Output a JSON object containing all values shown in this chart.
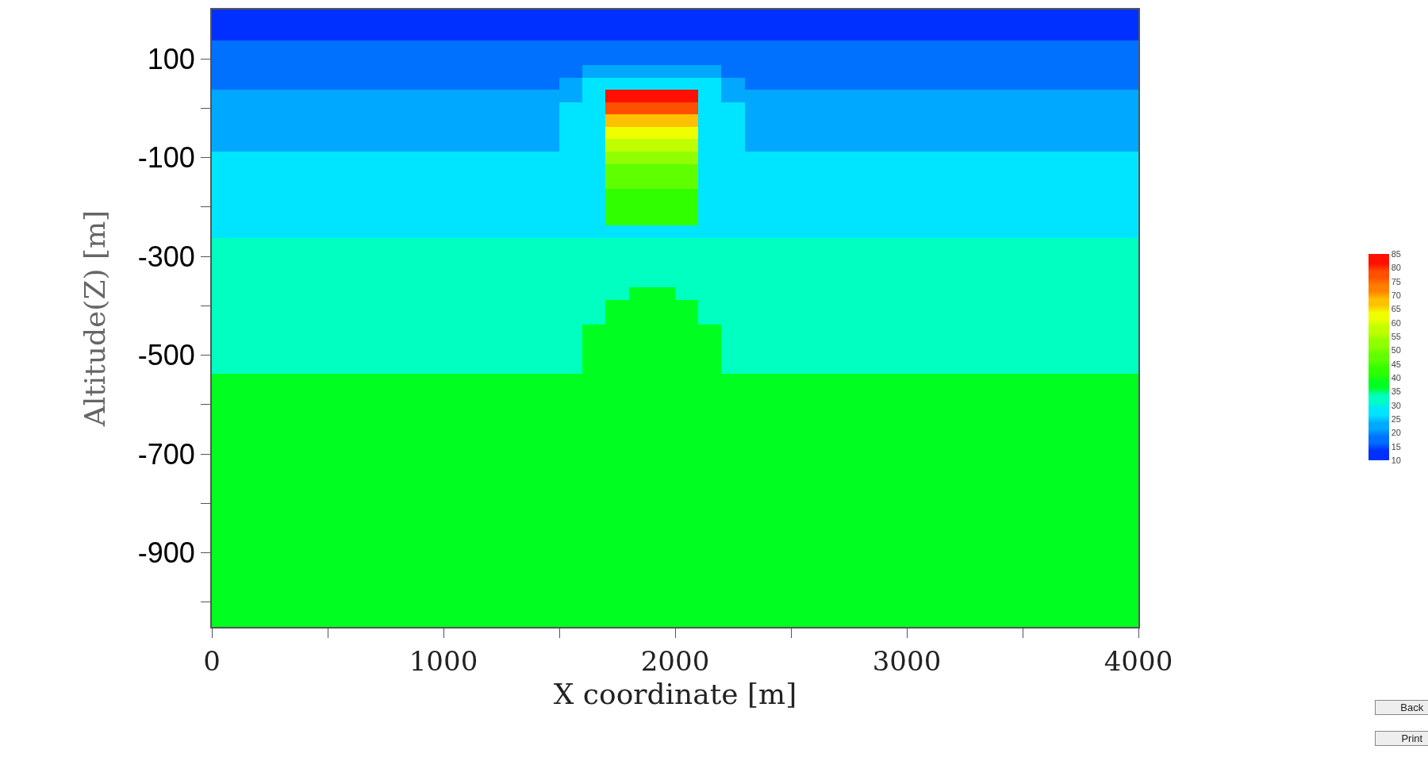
{
  "chart_data": {
    "type": "heatmap",
    "xlabel": "X coordinate [m]",
    "ylabel": "Altitude(Z) [m]",
    "x": [
      50,
      150,
      250,
      350,
      450,
      550,
      650,
      750,
      850,
      950,
      1050,
      1150,
      1250,
      1350,
      1450,
      1550,
      1650,
      1750,
      1850,
      1950,
      2050,
      2150,
      2250,
      2350,
      2450,
      2550,
      2650,
      2750,
      2850,
      2950,
      3050,
      3150,
      3250,
      3350,
      3450,
      3550,
      3650,
      3750,
      3850,
      3950
    ],
    "y": [
      200,
      175,
      150,
      125,
      100,
      75,
      50,
      25,
      0,
      -25,
      -50,
      -75,
      -100,
      -125,
      -150,
      -175,
      -200,
      -225,
      -250,
      -275,
      -300,
      -325,
      -350,
      -375,
      -400,
      -425,
      -450,
      -475,
      -500,
      -525,
      -550,
      -575,
      -600,
      -625,
      -650,
      -675,
      -700,
      -725,
      -750,
      -775,
      -800,
      -825,
      -850,
      -875,
      -900,
      -925,
      -950,
      -975,
      -1000,
      -1025,
      -1050
    ],
    "cells": [
      [
        12.5,
        12.5,
        12.5,
        12.5,
        12.5,
        12.5,
        12.5,
        12.5,
        12.5,
        12.5,
        12.5,
        12.5,
        12.5,
        12.5,
        12.5,
        12.5,
        12.5,
        12.5,
        12.5,
        12.5,
        12.5,
        12.5,
        12.5,
        12.5,
        12.5,
        12.5,
        12.5,
        12.5,
        12.5,
        12.5,
        12.5,
        12.5,
        12.5,
        12.5,
        12.5,
        12.5,
        12.5,
        12.5,
        12.5,
        12.5
      ],
      [
        12.5,
        12.5,
        12.5,
        12.5,
        12.5,
        12.5,
        12.5,
        12.5,
        12.5,
        12.5,
        12.5,
        12.5,
        12.5,
        12.5,
        12.5,
        12.5,
        12.5,
        12.5,
        12.5,
        12.5,
        12.5,
        12.5,
        12.5,
        12.5,
        12.5,
        12.5,
        12.5,
        12.5,
        12.5,
        12.5,
        12.5,
        12.5,
        12.5,
        12.5,
        12.5,
        12.5,
        12.5,
        12.5,
        12.5,
        12.5
      ],
      [
        12.5,
        12.5,
        12.5,
        12.5,
        12.5,
        12.5,
        12.5,
        12.5,
        12.5,
        12.5,
        12.5,
        12.5,
        12.5,
        12.5,
        12.5,
        12.5,
        12.5,
        12.5,
        12.5,
        12.5,
        12.5,
        12.5,
        12.5,
        12.5,
        12.5,
        12.5,
        12.5,
        12.5,
        12.5,
        12.5,
        12.5,
        12.5,
        12.5,
        12.5,
        12.5,
        12.5,
        12.5,
        12.5,
        12.5,
        12.5
      ],
      [
        17.5,
        17.5,
        17.5,
        17.5,
        17.5,
        17.5,
        17.5,
        17.5,
        17.5,
        17.5,
        17.5,
        17.5,
        17.5,
        17.5,
        17.5,
        17.5,
        17.5,
        17.5,
        17.5,
        17.5,
        17.5,
        17.5,
        17.5,
        17.5,
        17.5,
        17.5,
        17.5,
        17.5,
        17.5,
        17.5,
        17.5,
        17.5,
        17.5,
        17.5,
        17.5,
        17.5,
        17.5,
        17.5,
        17.5,
        17.5
      ],
      [
        17.5,
        17.5,
        17.5,
        17.5,
        17.5,
        17.5,
        17.5,
        17.5,
        17.5,
        17.5,
        17.5,
        17.5,
        17.5,
        17.5,
        17.5,
        17.5,
        17.5,
        17.5,
        17.5,
        17.5,
        17.5,
        17.5,
        17.5,
        17.5,
        17.5,
        17.5,
        17.5,
        17.5,
        17.5,
        17.5,
        17.5,
        17.5,
        17.5,
        17.5,
        17.5,
        17.5,
        17.5,
        17.5,
        17.5,
        17.5
      ],
      [
        17.5,
        17.5,
        17.5,
        17.5,
        17.5,
        17.5,
        17.5,
        17.5,
        17.5,
        17.5,
        17.5,
        17.5,
        17.5,
        17.5,
        17.5,
        17.5,
        22.5,
        22.5,
        22.5,
        22.5,
        22.5,
        22.5,
        17.5,
        17.5,
        17.5,
        17.5,
        17.5,
        17.5,
        17.5,
        17.5,
        17.5,
        17.5,
        17.5,
        17.5,
        17.5,
        17.5,
        17.5,
        17.5,
        17.5,
        17.5
      ],
      [
        17.5,
        17.5,
        17.5,
        17.5,
        17.5,
        17.5,
        17.5,
        17.5,
        17.5,
        17.5,
        17.5,
        17.5,
        17.5,
        17.5,
        17.5,
        22.5,
        27.5,
        27.5,
        27.5,
        27.5,
        27.5,
        27.5,
        22.5,
        17.5,
        17.5,
        17.5,
        17.5,
        17.5,
        17.5,
        17.5,
        17.5,
        17.5,
        17.5,
        17.5,
        17.5,
        17.5,
        17.5,
        17.5,
        17.5,
        17.5
      ],
      [
        22.5,
        22.5,
        22.5,
        22.5,
        22.5,
        22.5,
        22.5,
        22.5,
        22.5,
        22.5,
        22.5,
        22.5,
        22.5,
        22.5,
        22.5,
        22.5,
        27.5,
        82.5,
        82.5,
        82.5,
        82.5,
        27.5,
        22.5,
        22.5,
        22.5,
        22.5,
        22.5,
        22.5,
        22.5,
        22.5,
        22.5,
        22.5,
        22.5,
        22.5,
        22.5,
        22.5,
        22.5,
        22.5,
        22.5,
        22.5
      ],
      [
        22.5,
        22.5,
        22.5,
        22.5,
        22.5,
        22.5,
        22.5,
        22.5,
        22.5,
        22.5,
        22.5,
        22.5,
        22.5,
        22.5,
        22.5,
        27.5,
        27.5,
        77.5,
        77.5,
        77.5,
        77.5,
        27.5,
        27.5,
        22.5,
        22.5,
        22.5,
        22.5,
        22.5,
        22.5,
        22.5,
        22.5,
        22.5,
        22.5,
        22.5,
        22.5,
        22.5,
        22.5,
        22.5,
        22.5,
        22.5
      ],
      [
        22.5,
        22.5,
        22.5,
        22.5,
        22.5,
        22.5,
        22.5,
        22.5,
        22.5,
        22.5,
        22.5,
        22.5,
        22.5,
        22.5,
        22.5,
        27.5,
        27.5,
        67.5,
        67.5,
        67.5,
        67.5,
        27.5,
        27.5,
        22.5,
        22.5,
        22.5,
        22.5,
        22.5,
        22.5,
        22.5,
        22.5,
        22.5,
        22.5,
        22.5,
        22.5,
        22.5,
        22.5,
        22.5,
        22.5,
        22.5
      ],
      [
        22.5,
        22.5,
        22.5,
        22.5,
        22.5,
        22.5,
        22.5,
        22.5,
        22.5,
        22.5,
        22.5,
        22.5,
        22.5,
        22.5,
        22.5,
        27.5,
        27.5,
        62.5,
        62.5,
        62.5,
        62.5,
        27.5,
        27.5,
        22.5,
        22.5,
        22.5,
        22.5,
        22.5,
        22.5,
        22.5,
        22.5,
        22.5,
        22.5,
        22.5,
        22.5,
        22.5,
        22.5,
        22.5,
        22.5,
        22.5
      ],
      [
        22.5,
        22.5,
        22.5,
        22.5,
        22.5,
        22.5,
        22.5,
        22.5,
        22.5,
        22.5,
        22.5,
        22.5,
        22.5,
        22.5,
        22.5,
        27.5,
        27.5,
        57.5,
        57.5,
        57.5,
        57.5,
        27.5,
        27.5,
        22.5,
        22.5,
        22.5,
        22.5,
        22.5,
        22.5,
        22.5,
        22.5,
        22.5,
        22.5,
        22.5,
        22.5,
        22.5,
        22.5,
        22.5,
        22.5,
        22.5
      ],
      [
        27.5,
        27.5,
        27.5,
        27.5,
        27.5,
        27.5,
        27.5,
        27.5,
        27.5,
        27.5,
        27.5,
        27.5,
        27.5,
        27.5,
        27.5,
        27.5,
        27.5,
        52.5,
        52.5,
        52.5,
        52.5,
        27.5,
        27.5,
        27.5,
        27.5,
        27.5,
        27.5,
        27.5,
        27.5,
        27.5,
        27.5,
        27.5,
        27.5,
        27.5,
        27.5,
        27.5,
        27.5,
        27.5,
        27.5,
        27.5
      ],
      [
        27.5,
        27.5,
        27.5,
        27.5,
        27.5,
        27.5,
        27.5,
        27.5,
        27.5,
        27.5,
        27.5,
        27.5,
        27.5,
        27.5,
        27.5,
        27.5,
        27.5,
        47.5,
        47.5,
        47.5,
        47.5,
        27.5,
        27.5,
        27.5,
        27.5,
        27.5,
        27.5,
        27.5,
        27.5,
        27.5,
        27.5,
        27.5,
        27.5,
        27.5,
        27.5,
        27.5,
        27.5,
        27.5,
        27.5,
        27.5
      ],
      [
        27.5,
        27.5,
        27.5,
        27.5,
        27.5,
        27.5,
        27.5,
        27.5,
        27.5,
        27.5,
        27.5,
        27.5,
        27.5,
        27.5,
        27.5,
        27.5,
        27.5,
        47.5,
        47.5,
        47.5,
        47.5,
        27.5,
        27.5,
        27.5,
        27.5,
        27.5,
        27.5,
        27.5,
        27.5,
        27.5,
        27.5,
        27.5,
        27.5,
        27.5,
        27.5,
        27.5,
        27.5,
        27.5,
        27.5,
        27.5
      ],
      [
        27.5,
        27.5,
        27.5,
        27.5,
        27.5,
        27.5,
        27.5,
        27.5,
        27.5,
        27.5,
        27.5,
        27.5,
        27.5,
        27.5,
        27.5,
        27.5,
        27.5,
        42.5,
        42.5,
        42.5,
        42.5,
        27.5,
        27.5,
        27.5,
        27.5,
        27.5,
        27.5,
        27.5,
        27.5,
        27.5,
        27.5,
        27.5,
        27.5,
        27.5,
        27.5,
        27.5,
        27.5,
        27.5,
        27.5,
        27.5
      ],
      [
        27.5,
        27.5,
        27.5,
        27.5,
        27.5,
        27.5,
        27.5,
        27.5,
        27.5,
        27.5,
        27.5,
        27.5,
        27.5,
        27.5,
        27.5,
        27.5,
        27.5,
        42.5,
        42.5,
        42.5,
        42.5,
        27.5,
        27.5,
        27.5,
        27.5,
        27.5,
        27.5,
        27.5,
        27.5,
        27.5,
        27.5,
        27.5,
        27.5,
        27.5,
        27.5,
        27.5,
        27.5,
        27.5,
        27.5,
        27.5
      ],
      [
        27.5,
        27.5,
        27.5,
        27.5,
        27.5,
        27.5,
        27.5,
        27.5,
        27.5,
        27.5,
        27.5,
        27.5,
        27.5,
        27.5,
        27.5,
        27.5,
        27.5,
        42.5,
        42.5,
        42.5,
        42.5,
        27.5,
        27.5,
        27.5,
        27.5,
        27.5,
        27.5,
        27.5,
        27.5,
        27.5,
        27.5,
        27.5,
        27.5,
        27.5,
        27.5,
        27.5,
        27.5,
        27.5,
        27.5,
        27.5
      ],
      [
        27.5,
        27.5,
        27.5,
        27.5,
        27.5,
        27.5,
        27.5,
        27.5,
        27.5,
        27.5,
        27.5,
        27.5,
        27.5,
        27.5,
        27.5,
        27.5,
        27.5,
        27.5,
        27.5,
        27.5,
        27.5,
        27.5,
        27.5,
        27.5,
        27.5,
        27.5,
        27.5,
        27.5,
        27.5,
        27.5,
        27.5,
        27.5,
        27.5,
        27.5,
        27.5,
        27.5,
        27.5,
        27.5,
        27.5,
        27.5
      ],
      [
        32.5,
        32.5,
        32.5,
        32.5,
        32.5,
        32.5,
        32.5,
        32.5,
        32.5,
        32.5,
        32.5,
        32.5,
        32.5,
        32.5,
        32.5,
        32.5,
        32.5,
        32.5,
        32.5,
        32.5,
        32.5,
        32.5,
        32.5,
        32.5,
        32.5,
        32.5,
        32.5,
        32.5,
        32.5,
        32.5,
        32.5,
        32.5,
        32.5,
        32.5,
        32.5,
        32.5,
        32.5,
        32.5,
        32.5,
        32.5
      ],
      [
        32.5,
        32.5,
        32.5,
        32.5,
        32.5,
        32.5,
        32.5,
        32.5,
        32.5,
        32.5,
        32.5,
        32.5,
        32.5,
        32.5,
        32.5,
        32.5,
        32.5,
        32.5,
        32.5,
        32.5,
        32.5,
        32.5,
        32.5,
        32.5,
        32.5,
        32.5,
        32.5,
        32.5,
        32.5,
        32.5,
        32.5,
        32.5,
        32.5,
        32.5,
        32.5,
        32.5,
        32.5,
        32.5,
        32.5,
        32.5
      ],
      [
        32.5,
        32.5,
        32.5,
        32.5,
        32.5,
        32.5,
        32.5,
        32.5,
        32.5,
        32.5,
        32.5,
        32.5,
        32.5,
        32.5,
        32.5,
        32.5,
        32.5,
        32.5,
        32.5,
        32.5,
        32.5,
        32.5,
        32.5,
        32.5,
        32.5,
        32.5,
        32.5,
        32.5,
        32.5,
        32.5,
        32.5,
        32.5,
        32.5,
        32.5,
        32.5,
        32.5,
        32.5,
        32.5,
        32.5,
        32.5
      ],
      [
        32.5,
        32.5,
        32.5,
        32.5,
        32.5,
        32.5,
        32.5,
        32.5,
        32.5,
        32.5,
        32.5,
        32.5,
        32.5,
        32.5,
        32.5,
        32.5,
        32.5,
        32.5,
        32.5,
        32.5,
        32.5,
        32.5,
        32.5,
        32.5,
        32.5,
        32.5,
        32.5,
        32.5,
        32.5,
        32.5,
        32.5,
        32.5,
        32.5,
        32.5,
        32.5,
        32.5,
        32.5,
        32.5,
        32.5,
        32.5
      ],
      [
        32.5,
        32.5,
        32.5,
        32.5,
        32.5,
        32.5,
        32.5,
        32.5,
        32.5,
        32.5,
        32.5,
        32.5,
        32.5,
        32.5,
        32.5,
        32.5,
        32.5,
        32.5,
        37.5,
        37.5,
        32.5,
        32.5,
        32.5,
        32.5,
        32.5,
        32.5,
        32.5,
        32.5,
        32.5,
        32.5,
        32.5,
        32.5,
        32.5,
        32.5,
        32.5,
        32.5,
        32.5,
        32.5,
        32.5,
        32.5
      ],
      [
        32.5,
        32.5,
        32.5,
        32.5,
        32.5,
        32.5,
        32.5,
        32.5,
        32.5,
        32.5,
        32.5,
        32.5,
        32.5,
        32.5,
        32.5,
        32.5,
        32.5,
        37.5,
        37.5,
        37.5,
        37.5,
        32.5,
        32.5,
        32.5,
        32.5,
        32.5,
        32.5,
        32.5,
        32.5,
        32.5,
        32.5,
        32.5,
        32.5,
        32.5,
        32.5,
        32.5,
        32.5,
        32.5,
        32.5,
        32.5
      ],
      [
        32.5,
        32.5,
        32.5,
        32.5,
        32.5,
        32.5,
        32.5,
        32.5,
        32.5,
        32.5,
        32.5,
        32.5,
        32.5,
        32.5,
        32.5,
        32.5,
        32.5,
        37.5,
        37.5,
        37.5,
        37.5,
        32.5,
        32.5,
        32.5,
        32.5,
        32.5,
        32.5,
        32.5,
        32.5,
        32.5,
        32.5,
        32.5,
        32.5,
        32.5,
        32.5,
        32.5,
        32.5,
        32.5,
        32.5,
        32.5
      ],
      [
        32.5,
        32.5,
        32.5,
        32.5,
        32.5,
        32.5,
        32.5,
        32.5,
        32.5,
        32.5,
        32.5,
        32.5,
        32.5,
        32.5,
        32.5,
        32.5,
        37.5,
        37.5,
        37.5,
        37.5,
        37.5,
        37.5,
        32.5,
        32.5,
        32.5,
        32.5,
        32.5,
        32.5,
        32.5,
        32.5,
        32.5,
        32.5,
        32.5,
        32.5,
        32.5,
        32.5,
        32.5,
        32.5,
        32.5,
        32.5
      ],
      [
        32.5,
        32.5,
        32.5,
        32.5,
        32.5,
        32.5,
        32.5,
        32.5,
        32.5,
        32.5,
        32.5,
        32.5,
        32.5,
        32.5,
        32.5,
        32.5,
        37.5,
        37.5,
        37.5,
        37.5,
        37.5,
        37.5,
        32.5,
        32.5,
        32.5,
        32.5,
        32.5,
        32.5,
        32.5,
        32.5,
        32.5,
        32.5,
        32.5,
        32.5,
        32.5,
        32.5,
        32.5,
        32.5,
        32.5,
        32.5
      ],
      [
        32.5,
        32.5,
        32.5,
        32.5,
        32.5,
        32.5,
        32.5,
        32.5,
        32.5,
        32.5,
        32.5,
        32.5,
        32.5,
        32.5,
        32.5,
        32.5,
        37.5,
        37.5,
        37.5,
        37.5,
        37.5,
        37.5,
        32.5,
        32.5,
        32.5,
        32.5,
        32.5,
        32.5,
        32.5,
        32.5,
        32.5,
        32.5,
        32.5,
        32.5,
        32.5,
        32.5,
        32.5,
        32.5,
        32.5,
        32.5
      ],
      [
        32.5,
        32.5,
        32.5,
        32.5,
        32.5,
        32.5,
        32.5,
        32.5,
        32.5,
        32.5,
        32.5,
        32.5,
        32.5,
        32.5,
        32.5,
        32.5,
        37.5,
        37.5,
        37.5,
        37.5,
        37.5,
        37.5,
        32.5,
        32.5,
        32.5,
        32.5,
        32.5,
        32.5,
        32.5,
        32.5,
        32.5,
        32.5,
        32.5,
        32.5,
        32.5,
        32.5,
        32.5,
        32.5,
        32.5,
        32.5
      ],
      [
        37.5,
        37.5,
        37.5,
        37.5,
        37.5,
        37.5,
        37.5,
        37.5,
        37.5,
        37.5,
        37.5,
        37.5,
        37.5,
        37.5,
        37.5,
        37.5,
        37.5,
        37.5,
        37.5,
        37.5,
        37.5,
        37.5,
        37.5,
        37.5,
        37.5,
        37.5,
        37.5,
        37.5,
        37.5,
        37.5,
        37.5,
        37.5,
        37.5,
        37.5,
        37.5,
        37.5,
        37.5,
        37.5,
        37.5,
        37.5
      ],
      [
        37.5,
        37.5,
        37.5,
        37.5,
        37.5,
        37.5,
        37.5,
        37.5,
        37.5,
        37.5,
        37.5,
        37.5,
        37.5,
        37.5,
        37.5,
        37.5,
        37.5,
        37.5,
        37.5,
        37.5,
        37.5,
        37.5,
        37.5,
        37.5,
        37.5,
        37.5,
        37.5,
        37.5,
        37.5,
        37.5,
        37.5,
        37.5,
        37.5,
        37.5,
        37.5,
        37.5,
        37.5,
        37.5,
        37.5,
        37.5
      ],
      [
        37.5,
        37.5,
        37.5,
        37.5,
        37.5,
        37.5,
        37.5,
        37.5,
        37.5,
        37.5,
        37.5,
        37.5,
        37.5,
        37.5,
        37.5,
        37.5,
        37.5,
        37.5,
        37.5,
        37.5,
        37.5,
        37.5,
        37.5,
        37.5,
        37.5,
        37.5,
        37.5,
        37.5,
        37.5,
        37.5,
        37.5,
        37.5,
        37.5,
        37.5,
        37.5,
        37.5,
        37.5,
        37.5,
        37.5,
        37.5
      ],
      [
        37.5,
        37.5,
        37.5,
        37.5,
        37.5,
        37.5,
        37.5,
        37.5,
        37.5,
        37.5,
        37.5,
        37.5,
        37.5,
        37.5,
        37.5,
        37.5,
        37.5,
        37.5,
        37.5,
        37.5,
        37.5,
        37.5,
        37.5,
        37.5,
        37.5,
        37.5,
        37.5,
        37.5,
        37.5,
        37.5,
        37.5,
        37.5,
        37.5,
        37.5,
        37.5,
        37.5,
        37.5,
        37.5,
        37.5,
        37.5
      ],
      [
        37.5,
        37.5,
        37.5,
        37.5,
        37.5,
        37.5,
        37.5,
        37.5,
        37.5,
        37.5,
        37.5,
        37.5,
        37.5,
        37.5,
        37.5,
        37.5,
        37.5,
        37.5,
        37.5,
        37.5,
        37.5,
        37.5,
        37.5,
        37.5,
        37.5,
        37.5,
        37.5,
        37.5,
        37.5,
        37.5,
        37.5,
        37.5,
        37.5,
        37.5,
        37.5,
        37.5,
        37.5,
        37.5,
        37.5,
        37.5
      ],
      [
        37.5,
        37.5,
        37.5,
        37.5,
        37.5,
        37.5,
        37.5,
        37.5,
        37.5,
        37.5,
        37.5,
        37.5,
        37.5,
        37.5,
        37.5,
        37.5,
        37.5,
        37.5,
        37.5,
        37.5,
        37.5,
        37.5,
        37.5,
        37.5,
        37.5,
        37.5,
        37.5,
        37.5,
        37.5,
        37.5,
        37.5,
        37.5,
        37.5,
        37.5,
        37.5,
        37.5,
        37.5,
        37.5,
        37.5,
        37.5
      ],
      [
        37.5,
        37.5,
        37.5,
        37.5,
        37.5,
        37.5,
        37.5,
        37.5,
        37.5,
        37.5,
        37.5,
        37.5,
        37.5,
        37.5,
        37.5,
        37.5,
        37.5,
        37.5,
        37.5,
        37.5,
        37.5,
        37.5,
        37.5,
        37.5,
        37.5,
        37.5,
        37.5,
        37.5,
        37.5,
        37.5,
        37.5,
        37.5,
        37.5,
        37.5,
        37.5,
        37.5,
        37.5,
        37.5,
        37.5,
        37.5
      ],
      [
        37.5,
        37.5,
        37.5,
        37.5,
        37.5,
        37.5,
        37.5,
        37.5,
        37.5,
        37.5,
        37.5,
        37.5,
        37.5,
        37.5,
        37.5,
        37.5,
        37.5,
        37.5,
        37.5,
        37.5,
        37.5,
        37.5,
        37.5,
        37.5,
        37.5,
        37.5,
        37.5,
        37.5,
        37.5,
        37.5,
        37.5,
        37.5,
        37.5,
        37.5,
        37.5,
        37.5,
        37.5,
        37.5,
        37.5,
        37.5
      ],
      [
        37.5,
        37.5,
        37.5,
        37.5,
        37.5,
        37.5,
        37.5,
        37.5,
        37.5,
        37.5,
        37.5,
        37.5,
        37.5,
        37.5,
        37.5,
        37.5,
        37.5,
        37.5,
        37.5,
        37.5,
        37.5,
        37.5,
        37.5,
        37.5,
        37.5,
        37.5,
        37.5,
        37.5,
        37.5,
        37.5,
        37.5,
        37.5,
        37.5,
        37.5,
        37.5,
        37.5,
        37.5,
        37.5,
        37.5,
        37.5
      ],
      [
        37.5,
        37.5,
        37.5,
        37.5,
        37.5,
        37.5,
        37.5,
        37.5,
        37.5,
        37.5,
        37.5,
        37.5,
        37.5,
        37.5,
        37.5,
        37.5,
        37.5,
        37.5,
        37.5,
        37.5,
        37.5,
        37.5,
        37.5,
        37.5,
        37.5,
        37.5,
        37.5,
        37.5,
        37.5,
        37.5,
        37.5,
        37.5,
        37.5,
        37.5,
        37.5,
        37.5,
        37.5,
        37.5,
        37.5,
        37.5
      ],
      [
        37.5,
        37.5,
        37.5,
        37.5,
        37.5,
        37.5,
        37.5,
        37.5,
        37.5,
        37.5,
        37.5,
        37.5,
        37.5,
        37.5,
        37.5,
        37.5,
        37.5,
        37.5,
        37.5,
        37.5,
        37.5,
        37.5,
        37.5,
        37.5,
        37.5,
        37.5,
        37.5,
        37.5,
        37.5,
        37.5,
        37.5,
        37.5,
        37.5,
        37.5,
        37.5,
        37.5,
        37.5,
        37.5,
        37.5,
        37.5
      ],
      [
        37.5,
        37.5,
        37.5,
        37.5,
        37.5,
        37.5,
        37.5,
        37.5,
        37.5,
        37.5,
        37.5,
        37.5,
        37.5,
        37.5,
        37.5,
        37.5,
        37.5,
        37.5,
        37.5,
        37.5,
        37.5,
        37.5,
        37.5,
        37.5,
        37.5,
        37.5,
        37.5,
        37.5,
        37.5,
        37.5,
        37.5,
        37.5,
        37.5,
        37.5,
        37.5,
        37.5,
        37.5,
        37.5,
        37.5,
        37.5
      ],
      [
        37.5,
        37.5,
        37.5,
        37.5,
        37.5,
        37.5,
        37.5,
        37.5,
        37.5,
        37.5,
        37.5,
        37.5,
        37.5,
        37.5,
        37.5,
        37.5,
        37.5,
        37.5,
        37.5,
        37.5,
        37.5,
        37.5,
        37.5,
        37.5,
        37.5,
        37.5,
        37.5,
        37.5,
        37.5,
        37.5,
        37.5,
        37.5,
        37.5,
        37.5,
        37.5,
        37.5,
        37.5,
        37.5,
        37.5,
        37.5
      ],
      [
        37.5,
        37.5,
        37.5,
        37.5,
        37.5,
        37.5,
        37.5,
        37.5,
        37.5,
        37.5,
        37.5,
        37.5,
        37.5,
        37.5,
        37.5,
        37.5,
        37.5,
        37.5,
        37.5,
        37.5,
        37.5,
        37.5,
        37.5,
        37.5,
        37.5,
        37.5,
        37.5,
        37.5,
        37.5,
        37.5,
        37.5,
        37.5,
        37.5,
        37.5,
        37.5,
        37.5,
        37.5,
        37.5,
        37.5,
        37.5
      ],
      [
        37.5,
        37.5,
        37.5,
        37.5,
        37.5,
        37.5,
        37.5,
        37.5,
        37.5,
        37.5,
        37.5,
        37.5,
        37.5,
        37.5,
        37.5,
        37.5,
        37.5,
        37.5,
        37.5,
        37.5,
        37.5,
        37.5,
        37.5,
        37.5,
        37.5,
        37.5,
        37.5,
        37.5,
        37.5,
        37.5,
        37.5,
        37.5,
        37.5,
        37.5,
        37.5,
        37.5,
        37.5,
        37.5,
        37.5,
        37.5
      ],
      [
        37.5,
        37.5,
        37.5,
        37.5,
        37.5,
        37.5,
        37.5,
        37.5,
        37.5,
        37.5,
        37.5,
        37.5,
        37.5,
        37.5,
        37.5,
        37.5,
        37.5,
        37.5,
        37.5,
        37.5,
        37.5,
        37.5,
        37.5,
        37.5,
        37.5,
        37.5,
        37.5,
        37.5,
        37.5,
        37.5,
        37.5,
        37.5,
        37.5,
        37.5,
        37.5,
        37.5,
        37.5,
        37.5,
        37.5,
        37.5
      ],
      [
        37.5,
        37.5,
        37.5,
        37.5,
        37.5,
        37.5,
        37.5,
        37.5,
        37.5,
        37.5,
        37.5,
        37.5,
        37.5,
        37.5,
        37.5,
        37.5,
        37.5,
        37.5,
        37.5,
        37.5,
        37.5,
        37.5,
        37.5,
        37.5,
        37.5,
        37.5,
        37.5,
        37.5,
        37.5,
        37.5,
        37.5,
        37.5,
        37.5,
        37.5,
        37.5,
        37.5,
        37.5,
        37.5,
        37.5,
        37.5
      ],
      [
        37.5,
        37.5,
        37.5,
        37.5,
        37.5,
        37.5,
        37.5,
        37.5,
        37.5,
        37.5,
        37.5,
        37.5,
        37.5,
        37.5,
        37.5,
        37.5,
        37.5,
        37.5,
        37.5,
        37.5,
        37.5,
        37.5,
        37.5,
        37.5,
        37.5,
        37.5,
        37.5,
        37.5,
        37.5,
        37.5,
        37.5,
        37.5,
        37.5,
        37.5,
        37.5,
        37.5,
        37.5,
        37.5,
        37.5,
        37.5
      ],
      [
        37.5,
        37.5,
        37.5,
        37.5,
        37.5,
        37.5,
        37.5,
        37.5,
        37.5,
        37.5,
        37.5,
        37.5,
        37.5,
        37.5,
        37.5,
        37.5,
        37.5,
        37.5,
        37.5,
        37.5,
        37.5,
        37.5,
        37.5,
        37.5,
        37.5,
        37.5,
        37.5,
        37.5,
        37.5,
        37.5,
        37.5,
        37.5,
        37.5,
        37.5,
        37.5,
        37.5,
        37.5,
        37.5,
        37.5,
        37.5
      ],
      [
        37.5,
        37.5,
        37.5,
        37.5,
        37.5,
        37.5,
        37.5,
        37.5,
        37.5,
        37.5,
        37.5,
        37.5,
        37.5,
        37.5,
        37.5,
        37.5,
        37.5,
        37.5,
        37.5,
        37.5,
        37.5,
        37.5,
        37.5,
        37.5,
        37.5,
        37.5,
        37.5,
        37.5,
        37.5,
        37.5,
        37.5,
        37.5,
        37.5,
        37.5,
        37.5,
        37.5,
        37.5,
        37.5,
        37.5,
        37.5
      ],
      [
        37.5,
        37.5,
        37.5,
        37.5,
        37.5,
        37.5,
        37.5,
        37.5,
        37.5,
        37.5,
        37.5,
        37.5,
        37.5,
        37.5,
        37.5,
        37.5,
        37.5,
        37.5,
        37.5,
        37.5,
        37.5,
        37.5,
        37.5,
        37.5,
        37.5,
        37.5,
        37.5,
        37.5,
        37.5,
        37.5,
        37.5,
        37.5,
        37.5,
        37.5,
        37.5,
        37.5,
        37.5,
        37.5,
        37.5,
        37.5
      ]
    ],
    "colors": [
      "#0030ff",
      "#0070ff",
      "#00a8ff",
      "#00e5ff",
      "#00ffc0",
      "#00ff20",
      "#30ff00",
      "#60ff00",
      "#90ff00",
      "#c0ff00",
      "#f0ff00",
      "#ffc000",
      "#ff8000",
      "#ff5000",
      "#ff1000"
    ],
    "clim": [
      10,
      85
    ],
    "cticks": [
      10,
      15,
      20,
      25,
      30,
      35,
      40,
      45,
      50,
      55,
      60,
      65,
      70,
      75,
      80,
      85
    ],
    "xlim": [
      0,
      4000
    ],
    "xticks": [
      0,
      {
        "value": 500,
        "label": null
      },
      1000,
      {
        "value": 1500,
        "label": null
      },
      2000,
      {
        "value": 2500,
        "label": null
      },
      3000,
      {
        "value": 3500,
        "label": null
      },
      4000
    ],
    "ylim": [
      -1050,
      200
    ],
    "yticks": [
      100,
      {
        "value": 0,
        "label": null
      },
      -100,
      {
        "value": -200,
        "label": null
      },
      -300,
      {
        "value": -400,
        "label": null
      },
      -500,
      {
        "value": -600,
        "label": null
      },
      -700,
      {
        "value": -800,
        "label": null
      },
      -900,
      {
        "value": -1000,
        "label": null
      }
    ],
    "annotations": [
      "Back",
      "Print"
    ]
  }
}
